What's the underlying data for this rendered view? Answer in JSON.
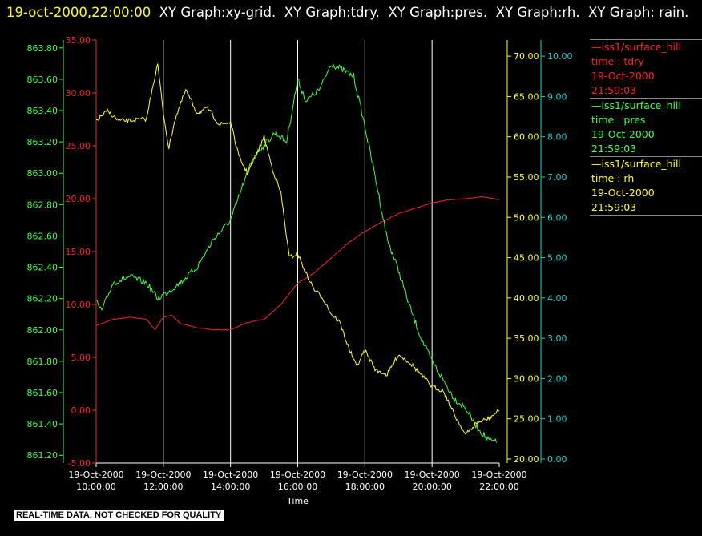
{
  "header": {
    "timestamp": "19-oct-2000,22:00:00",
    "graphs": [
      "XY Graph:xy-grid.",
      "XY Graph:tdry.",
      "XY Graph:pres.",
      "XY Graph:rh.",
      "XY Graph:"
    ],
    "last_word": "rain."
  },
  "footer_banner": "REAL-TIME DATA, NOT CHECKED FOR QUALITY",
  "legend": [
    {
      "line": "—iss1/surface_hill",
      "var": "time : tdry",
      "date": "19-Oct-2000",
      "time": "21:59:03",
      "color": "#ff2020"
    },
    {
      "line": "—iss1/surface_hill",
      "var": "time : pres",
      "date": "19-Oct-2000",
      "time": "21:59:03",
      "color": "#40ff40"
    },
    {
      "line": "—iss1/surface_hill",
      "var": "time : rh",
      "date": "19-Oct-2000",
      "time": "21:59:03",
      "color": "#ffff20"
    }
  ],
  "chart_data": {
    "type": "line",
    "xlabel": "Time",
    "x_ticks": [
      {
        "date": "19-Oct-2000",
        "time": "10:00:00"
      },
      {
        "date": "19-Oct-2000",
        "time": "12:00:00"
      },
      {
        "date": "19-Oct-2000",
        "time": "14:00:00"
      },
      {
        "date": "19-Oct-2000",
        "time": "16:00:00"
      },
      {
        "date": "19-Oct-2000",
        "time": "18:00:00"
      },
      {
        "date": "19-Oct-2000",
        "time": "20:00:00"
      },
      {
        "date": "19-Oct-2000",
        "time": "22:00:00"
      }
    ],
    "xlim": [
      "10:00",
      "22:00"
    ],
    "grid": "vertical",
    "axes": {
      "pres": {
        "side": "left-outer",
        "color": "#40ff40",
        "ylim": [
          861.15,
          863.85
        ],
        "ticks": [
          "861.20",
          "861.40",
          "861.60",
          "861.80",
          "862.00",
          "862.20",
          "862.40",
          "862.60",
          "862.80",
          "863.00",
          "863.20",
          "863.40",
          "863.60",
          "863.80"
        ]
      },
      "tdry": {
        "side": "left-inner",
        "color": "#ff2020",
        "ylim": [
          -5,
          35
        ],
        "ticks": [
          "-5.00",
          "0.00",
          "5.00",
          "10.00",
          "15.00",
          "20.00",
          "25.00",
          "30.00",
          "35.00"
        ]
      },
      "rh": {
        "side": "right-inner",
        "color": "#ffff20",
        "ylim": [
          19.5,
          72
        ],
        "ticks": [
          "20.00",
          "25.00",
          "30.00",
          "35.00",
          "40.00",
          "45.00",
          "50.00",
          "55.00",
          "60.00",
          "65.00",
          "70.00"
        ]
      },
      "rain": {
        "side": "right-outer",
        "color": "#20d0d0",
        "ylim": [
          -0.1,
          10.4
        ],
        "ticks": [
          "0.00",
          "1.00",
          "2.00",
          "3.00",
          "4.00",
          "5.00",
          "6.00",
          "7.00",
          "8.00",
          "9.00",
          "10.00"
        ]
      }
    },
    "series": [
      {
        "name": "tdry",
        "axis": "tdry",
        "color": "#ff2020",
        "x": [
          "10:00",
          "10:30",
          "11:00",
          "11:30",
          "11:45",
          "12:00",
          "12:15",
          "12:30",
          "13:00",
          "13:30",
          "14:00",
          "14:30",
          "15:00",
          "15:30",
          "16:00",
          "16:30",
          "17:00",
          "17:30",
          "18:00",
          "18:30",
          "19:00",
          "19:30",
          "20:00",
          "20:30",
          "21:00",
          "21:30",
          "22:00"
        ],
        "values": [
          8.0,
          8.6,
          8.8,
          8.6,
          7.6,
          8.8,
          9.0,
          8.2,
          7.8,
          7.6,
          7.6,
          8.3,
          8.6,
          10.0,
          12.0,
          13.0,
          14.4,
          15.8,
          16.9,
          17.8,
          18.6,
          19.1,
          19.6,
          19.9,
          20.0,
          20.2,
          19.9
        ]
      },
      {
        "name": "pres",
        "axis": "pres",
        "color": "#40ff40",
        "x": [
          "10:00",
          "10:10",
          "10:30",
          "11:00",
          "11:30",
          "11:50",
          "12:15",
          "12:30",
          "13:00",
          "13:30",
          "14:00",
          "14:20",
          "14:40",
          "15:00",
          "15:20",
          "15:40",
          "16:00",
          "16:15",
          "16:40",
          "17:00",
          "17:20",
          "17:40",
          "18:00",
          "18:20",
          "18:40",
          "19:00",
          "19:20",
          "19:40",
          "20:00",
          "20:20",
          "20:40",
          "21:00",
          "21:20",
          "21:40",
          "21:55"
        ],
        "values": [
          862.18,
          862.12,
          862.3,
          862.34,
          862.3,
          862.2,
          862.26,
          862.3,
          862.4,
          862.58,
          862.7,
          862.9,
          863.1,
          863.18,
          863.26,
          863.2,
          863.6,
          863.46,
          863.54,
          863.7,
          863.66,
          863.62,
          863.3,
          862.95,
          862.58,
          862.38,
          862.15,
          861.95,
          861.8,
          861.68,
          861.56,
          861.5,
          861.38,
          861.3,
          861.28
        ]
      },
      {
        "name": "rh",
        "axis": "rh",
        "color": "#ffff20",
        "x": [
          "10:00",
          "10:20",
          "10:40",
          "11:00",
          "11:30",
          "11:40",
          "11:50",
          "12:00",
          "12:10",
          "12:20",
          "12:40",
          "13:00",
          "13:20",
          "13:40",
          "14:00",
          "14:15",
          "14:30",
          "14:45",
          "15:00",
          "15:15",
          "15:30",
          "15:45",
          "16:00",
          "16:15",
          "16:30",
          "16:45",
          "17:00",
          "17:15",
          "17:30",
          "17:45",
          "18:00",
          "18:20",
          "18:40",
          "19:00",
          "19:20",
          "19:40",
          "20:00",
          "20:20",
          "20:40",
          "21:00",
          "21:20",
          "21:40",
          "22:00"
        ],
        "values": [
          62.0,
          63.2,
          62.0,
          62.0,
          62.2,
          66.0,
          69.0,
          63.0,
          58.5,
          62.0,
          65.8,
          63.0,
          63.5,
          61.5,
          61.8,
          57.5,
          55.5,
          57.5,
          60.0,
          56.0,
          53.0,
          45.0,
          45.5,
          43.0,
          41.0,
          40.0,
          38.0,
          37.0,
          34.0,
          31.5,
          33.5,
          31.0,
          30.5,
          33.0,
          32.0,
          30.5,
          29.0,
          28.5,
          25.5,
          23.0,
          24.5,
          25.0,
          26.0
        ]
      }
    ]
  }
}
